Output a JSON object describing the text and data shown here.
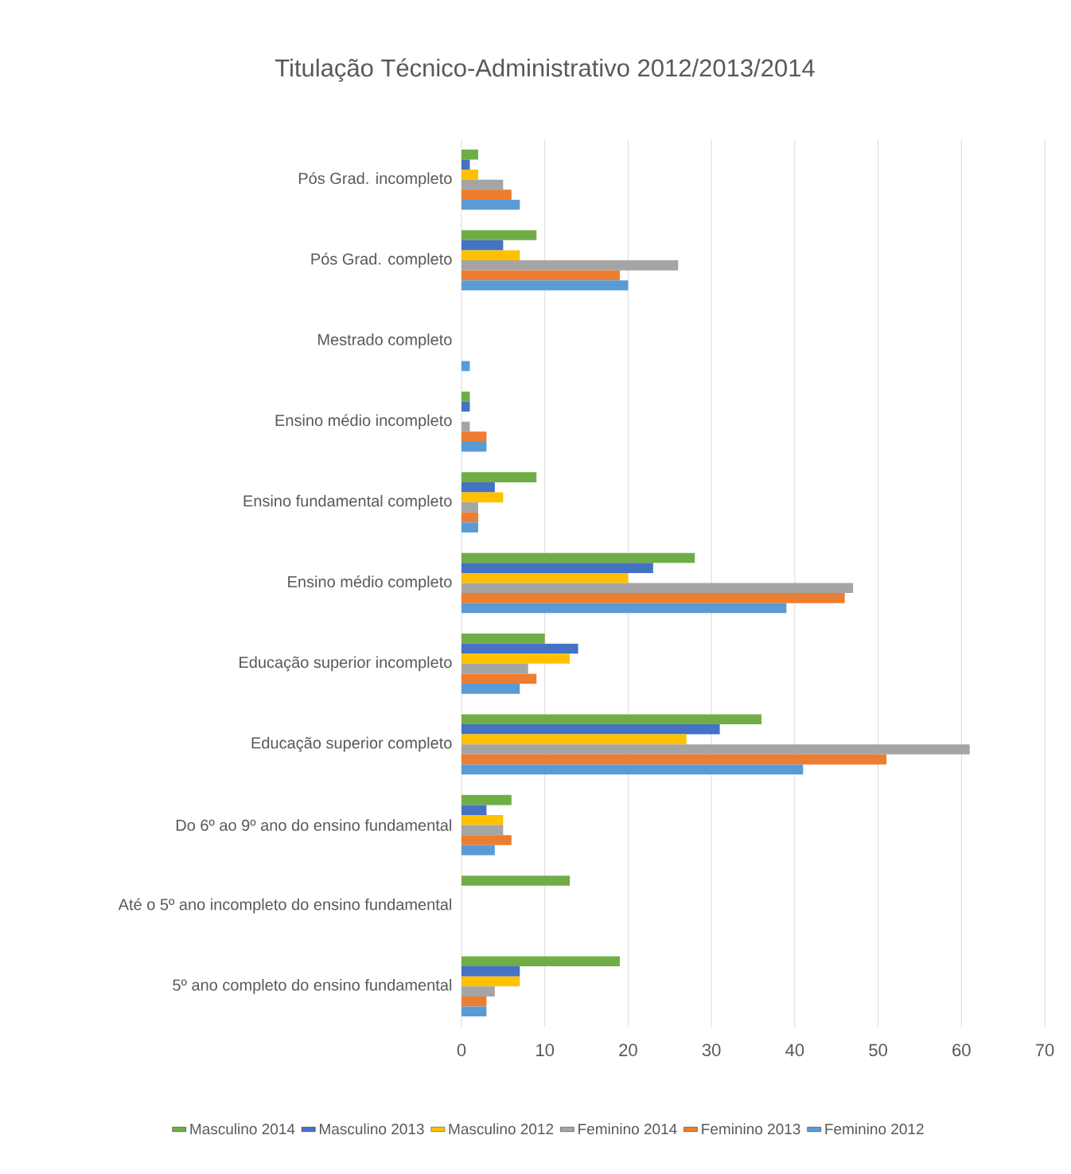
{
  "chart_data": {
    "type": "bar",
    "orientation": "horizontal",
    "title": "Titulação Técnico-Administrativo 2012/2013/2014",
    "categories": [
      "Pós Grad. incompleto",
      "Pós Grad. completo",
      "Mestrado completo",
      "Ensino médio incompleto",
      "Ensino fundamental completo",
      "Ensino médio completo",
      "Educação superior incompleto",
      "Educação superior completo",
      "Do 6º ao 9º ano do ensino fundamental",
      "Até o 5º ano incompleto do ensino fundamental",
      "5º ano completo do ensino fundamental"
    ],
    "series": [
      {
        "name": "Masculino 2014",
        "color": "#70ad47",
        "values": [
          2,
          9,
          null,
          1,
          9,
          28,
          10,
          36,
          6,
          13,
          19
        ]
      },
      {
        "name": "Masculino 2013",
        "color": "#4472c4",
        "values": [
          1,
          5,
          null,
          1,
          4,
          23,
          14,
          31,
          3,
          null,
          7
        ]
      },
      {
        "name": "Masculino 2012",
        "color": "#ffc000",
        "values": [
          2,
          7,
          null,
          null,
          5,
          20,
          13,
          27,
          5,
          null,
          7
        ]
      },
      {
        "name": "Feminino 2014",
        "color": "#a5a5a5",
        "values": [
          5,
          26,
          null,
          1,
          2,
          47,
          8,
          61,
          5,
          null,
          4
        ]
      },
      {
        "name": "Feminino 2013",
        "color": "#ed7d31",
        "values": [
          6,
          19,
          null,
          3,
          2,
          46,
          9,
          51,
          6,
          null,
          3
        ]
      },
      {
        "name": "Feminino 2012",
        "color": "#5b9bd5",
        "values": [
          7,
          20,
          1,
          3,
          2,
          39,
          7,
          41,
          4,
          null,
          3
        ]
      }
    ],
    "xlim": [
      0,
      70
    ],
    "xticks": [
      0,
      10,
      20,
      30,
      40,
      50,
      60,
      70
    ],
    "grid": "x",
    "legend": "bottom"
  }
}
